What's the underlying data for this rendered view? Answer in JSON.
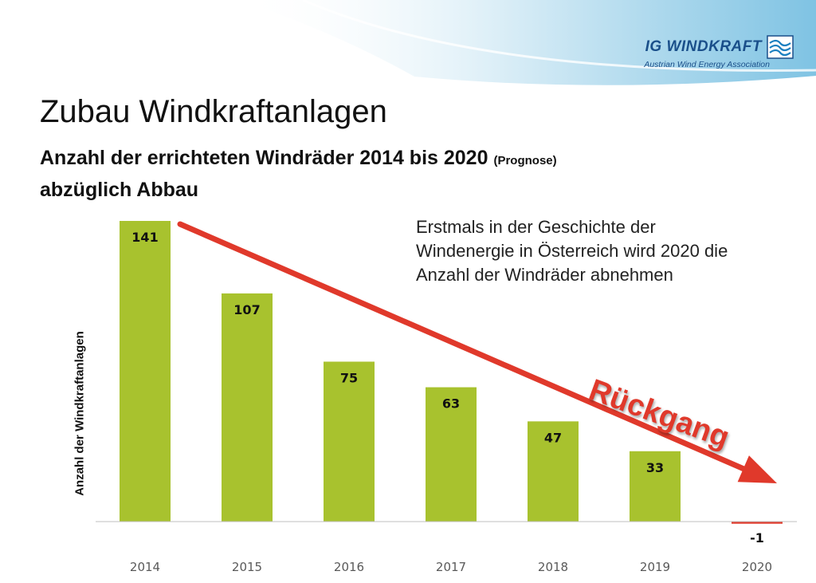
{
  "header": {
    "logo_text": "IG WINDKRAFT",
    "logo_subtitle": "Austrian Wind Energy Association",
    "title": "Zubau Windkraftanlagen",
    "subtitle_main": "Anzahl der errichteten Windräder 2014 bis 2020",
    "subtitle_note": "(Prognose)",
    "subtitle_line2": "abzüglich Abbau"
  },
  "annotation": "Erstmals in der Geschichte der Windenergie in Österreich wird 2020 die Anzahl der Windräder abnehmen",
  "trend_label": "Rückgang",
  "colors": {
    "bar": "#a8c22e",
    "negative_bar": "#e0392b",
    "arrow": "#e0392b",
    "logo": "#1a4f8a"
  },
  "chart_data": {
    "type": "bar",
    "categories": [
      "2014",
      "2015",
      "2016",
      "2017",
      "2018",
      "2019",
      "2020"
    ],
    "values": [
      141,
      107,
      75,
      63,
      47,
      33,
      -1
    ],
    "data_labels": [
      "141",
      "107",
      "75",
      "63",
      "47",
      "33",
      "-1"
    ],
    "title": "Zubau Windkraftanlagen",
    "xlabel": "",
    "ylabel": "Anzahl der Windkraftanlagen",
    "ylim": [
      -1,
      141
    ],
    "grid": false,
    "legend": "none",
    "annotations": [
      "Erstmals in der Geschichte der Windenergie in Österreich wird 2020 die Anzahl der Windräder abnehmen",
      "Rückgang"
    ]
  }
}
